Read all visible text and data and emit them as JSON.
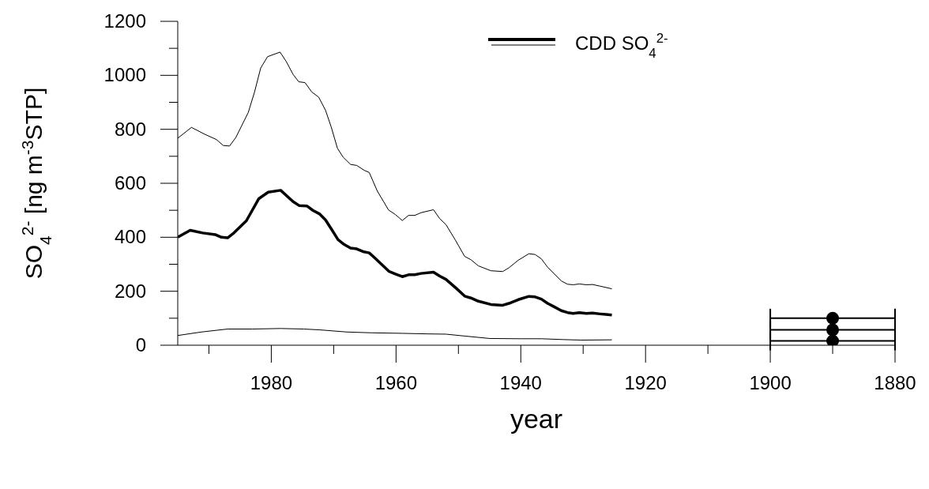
{
  "chart_data": {
    "type": "line",
    "xlabel": "year",
    "ylabel": "SO$_{4}$$^{2-}$ [ng m$^{-3}$STP]",
    "xlim": [
      1995,
      1880
    ],
    "xticks": [
      1880,
      {
        "value": 1890,
        "label": null
      },
      1900,
      {
        "value": 1910,
        "label": null
      },
      1920,
      {
        "value": 1930,
        "label": null
      },
      1940,
      {
        "value": 1950,
        "label": null
      },
      1960,
      {
        "value": 1970,
        "label": null
      },
      1980,
      {
        "value": 1990,
        "label": null
      }
    ],
    "ylim": [
      0,
      1200
    ],
    "yticks": [
      0,
      {
        "value": 100,
        "label": null
      },
      200,
      {
        "value": 300,
        "label": null
      },
      400,
      {
        "value": 500,
        "label": null
      },
      600,
      {
        "value": 700,
        "label": null
      },
      800,
      {
        "value": 900,
        "label": null
      },
      1000,
      {
        "value": 1100,
        "label": null
      },
      1200
    ],
    "grid": false,
    "legend": "top",
    "series": [
      {
        "color": "#000000",
        "x": [
          1995,
          1992.8,
          1990.7,
          1988.8,
          1987.7,
          1986.7,
          1985.7,
          1983.7,
          1982.7,
          1981.7,
          1980.6,
          1978.6,
          1977.6,
          1976.5,
          1975.6,
          1974.6,
          1973.5,
          1972.4,
          1971.3,
          1970.4,
          1969.4,
          1968.5,
          1967.3,
          1966.3,
          1965.1,
          1964.3,
          1963,
          1961.2,
          1960.1,
          1959,
          1958,
          1957,
          1956,
          1954,
          1953,
          1952,
          1950.5,
          1949,
          1948,
          1946.8,
          1944.8,
          1942.9,
          1941.9,
          1940.4,
          1938.7,
          1937.7,
          1936.7,
          1935.7,
          1934.7,
          1933.5,
          1932.5,
          1931.6,
          1930.6,
          1929.5,
          1928.5,
          1927.3,
          1925.4
        ],
        "values": [
          767,
          807,
          782,
          762,
          740,
          738,
          769,
          862,
          937,
          1027,
          1069,
          1086,
          1051,
          1003,
          976,
          973,
          938,
          919,
          870,
          809,
          730,
          697,
          670,
          666,
          648,
          640,
          571,
          501,
          484,
          462,
          481,
          481,
          491,
          502,
          469,
          447,
          390,
          329,
          317,
          294,
          276,
          273,
          287,
          315,
          339,
          336,
          320,
          289,
          266,
          238,
          226,
          224,
          227,
          224,
          225,
          219,
          209
        ]
      },
      {
        "name": "CDD SO$_{4}$$^{2-}$",
        "color": "#000000",
        "x": [
          1995,
          1993,
          1991,
          1989,
          1988,
          1987,
          1986,
          1984,
          1982,
          1980.5,
          1978.5,
          1976.5,
          1975.5,
          1974.3,
          1973.3,
          1972.3,
          1971.3,
          1970.3,
          1969.3,
          1968.3,
          1967.3,
          1966.3,
          1965.3,
          1964.3,
          1963.1,
          1962.1,
          1961.1,
          1960.1,
          1959,
          1958,
          1957,
          1956,
          1954,
          1953,
          1952,
          1950.5,
          1949,
          1948,
          1946.8,
          1944.8,
          1942.9,
          1941.9,
          1940.4,
          1938.7,
          1937.7,
          1936.7,
          1935.7,
          1934.7,
          1933.5,
          1932.5,
          1931.6,
          1930.6,
          1929.5,
          1928.5,
          1927.3,
          1925.4
        ],
        "values": [
          400,
          426,
          416,
          410,
          400,
          398,
          416,
          461,
          543,
          567,
          574,
          532,
          517,
          516,
          499,
          487,
          464,
          428,
          391,
          373,
          360,
          357,
          347,
          342,
          317,
          295,
          273,
          264,
          254,
          261,
          261,
          266,
          271,
          256,
          244,
          214,
          182,
          175,
          163,
          151,
          148,
          155,
          169,
          181,
          179,
          171,
          155,
          143,
          128,
          121,
          118,
          121,
          118,
          119,
          116,
          112
        ]
      },
      {
        "color": "#000000",
        "x": [
          1995,
          1991.2,
          1987,
          1983,
          1978.5,
          1974.8,
          1972.3,
          1967.9,
          1963.9,
          1959,
          1955,
          1952,
          1949,
          1945,
          1940,
          1936.7,
          1933.3,
          1930.3,
          1925.4
        ],
        "values": [
          36,
          49,
          60,
          60,
          62,
          60,
          57,
          49,
          46,
          44,
          42,
          41,
          34,
          25,
          24,
          24,
          21,
          19,
          20
        ]
      },
      {
        "type": "scatter",
        "marker": "circle",
        "color": "#000000",
        "x": [
          1890,
          1890,
          1890
        ],
        "values": [
          100,
          57,
          16
        ],
        "xerrors": [
          10,
          10,
          10
        ]
      }
    ]
  }
}
